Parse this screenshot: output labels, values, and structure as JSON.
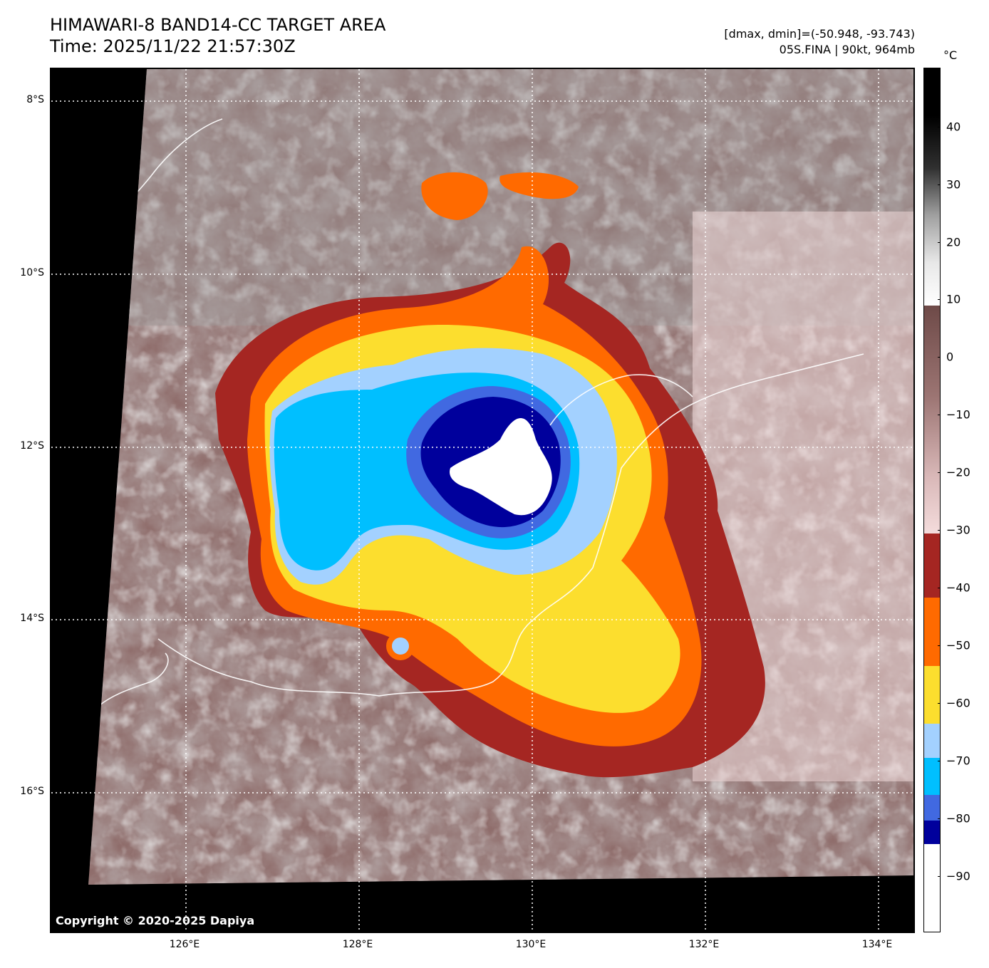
{
  "header": {
    "title_line1": "HIMAWARI-8 BAND14-CC TARGET AREA",
    "title_line2": "Time: 2025/11/22 21:57:30Z",
    "range_text": "[dmax, dmin]=(-50.948, -93.743)",
    "storm_text": "05S.FINA | 90kt, 964mb"
  },
  "map": {
    "copyright": "Copyright © 2020-2025 Dapiya",
    "lat_labels": [
      "8°S",
      "10°S",
      "12°S",
      "14°S",
      "16°S"
    ],
    "lon_labels": [
      "126°E",
      "128°E",
      "130°E",
      "132°E",
      "134°E"
    ]
  },
  "colorbar": {
    "unit": "°C",
    "ticks": [
      "40",
      "30",
      "20",
      "10",
      "0",
      "−10",
      "−20",
      "−30",
      "−40",
      "−50",
      "−60",
      "−70",
      "−80",
      "−90"
    ],
    "colors": {
      "warm_dark": "#000000",
      "warm_light": "#ffffff",
      "brown_dark": "#6e4a48",
      "pink_light": "#f4dcdc",
      "band_40": "#a52622",
      "band_50": "#ff6a00",
      "band_60": "#fcde2e",
      "band_70_light": "#a3d1ff",
      "band_70": "#00bfff",
      "band_80": "#4169e1",
      "band_85": "#00009c",
      "band_90": "#ffffff"
    }
  }
}
